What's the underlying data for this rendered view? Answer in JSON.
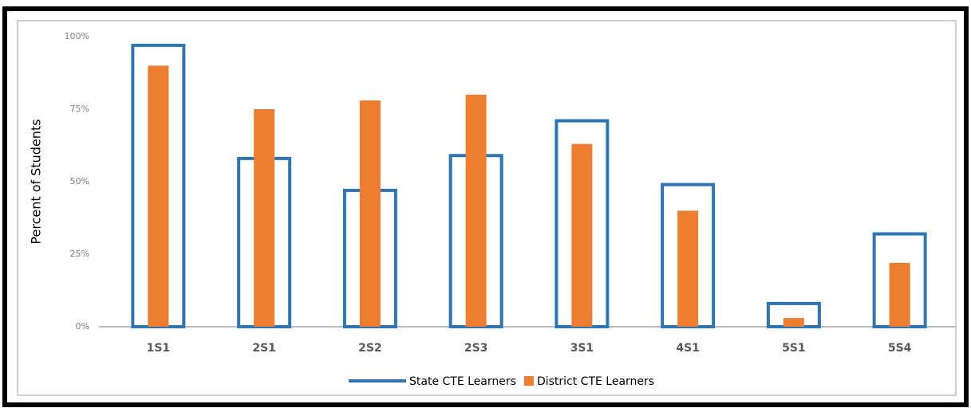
{
  "chart_data": {
    "type": "bar",
    "y_label": "Percent of Students",
    "categories": [
      "1S1",
      "2S1",
      "2S2",
      "2S3",
      "3S1",
      "4S1",
      "5S1",
      "5S4"
    ],
    "series": [
      {
        "name": "State CTE Learners",
        "color": "#2e75b6",
        "filled": false,
        "values": [
          97,
          58,
          47,
          59,
          71,
          49,
          8,
          32
        ]
      },
      {
        "name": "District CTE Learners",
        "color": "#ed7d31",
        "filled": true,
        "values": [
          90,
          75,
          78,
          80,
          63,
          40,
          3,
          22
        ]
      }
    ],
    "ylim": [
      0,
      100
    ],
    "yticks": [
      {
        "value": 0,
        "label": "0%"
      },
      {
        "value": 25,
        "label": "25%"
      },
      {
        "value": 50,
        "label": "50%"
      },
      {
        "value": 75,
        "label": "75%"
      },
      {
        "value": 100,
        "label": "100%"
      }
    ],
    "grid": false
  }
}
